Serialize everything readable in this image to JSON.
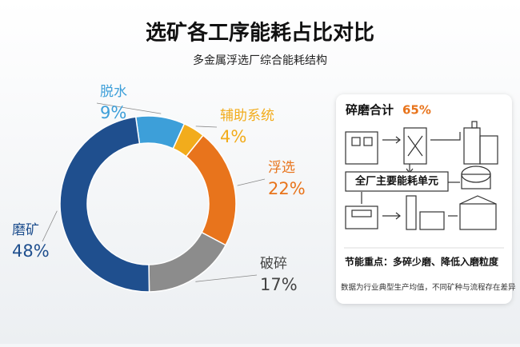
{
  "chart_data": {
    "type": "donut",
    "title": "选矿各工序能耗占比对比",
    "subtitle": "多金属浮选厂综合能耗结构",
    "categories": [
      "脱水",
      "辅助系统",
      "浮选",
      "破碎",
      "磨矿"
    ],
    "values": [
      9,
      4,
      22,
      17,
      48
    ],
    "value_labels": [
      "9%",
      "4%",
      "22%",
      "17%",
      "48%"
    ],
    "colors": [
      "#3d9fd9",
      "#f2ac1c",
      "#e8741c",
      "#8c8c8c",
      "#1f4f8e"
    ]
  },
  "panel": {
    "heading": "碎磨合计",
    "total": "65%",
    "unit_label": "全厂主要能耗单元",
    "note": "节能重点：多碎少磨、降低入磨粒度",
    "footnote": "数据为行业典型生产均值，不同矿种与流程存在差异"
  }
}
